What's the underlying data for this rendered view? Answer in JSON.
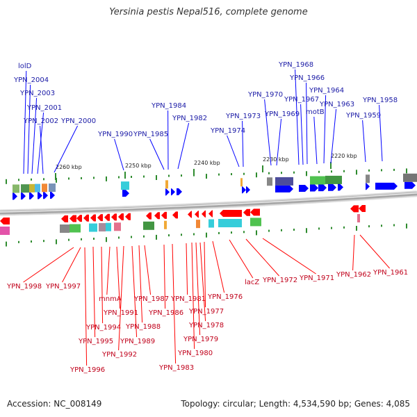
{
  "title": "Yersinia pestis Nepal516, complete genome",
  "accession": "Accession: NC_008149",
  "summary": "Topology: circular; Length: 4,534,590 bp; Genes: 4,085",
  "colors": {
    "forward": "#0000ff",
    "reverse": "#ff0000",
    "forward_label": "#1a1aa6",
    "reverse_label": "#c0001a",
    "tick": "#2e8b2e",
    "backbone": "#a7a7a7"
  },
  "scale": [
    "2260 kbp",
    "2250 kbp",
    "2240 kbp",
    "2230 kbp",
    "2220 kbp"
  ],
  "forward_genes": [
    "lolD",
    "YPN_2004",
    "YPN_2003",
    "YPN_2001",
    "YPN_2002",
    "YPN_2000",
    "YPN_1990",
    "YPN_1985",
    "YPN_1984",
    "YPN_1982",
    "YPN_1974",
    "YPN_1973",
    "YPN_1970",
    "YPN_1969",
    "YPN_1968",
    "YPN_1967",
    "YPN_1966",
    "motB",
    "YPN_1964",
    "YPN_1963",
    "YPN_1959",
    "YPN_1958"
  ],
  "reverse_genes": [
    "YPN_1998",
    "YPN_1997",
    "YPN_1996",
    "YPN_1995",
    "YPN_1994",
    "mnmA",
    "YPN_1991",
    "YPN_1992",
    "YPN_1989",
    "YPN_1988",
    "YPN_1987",
    "YPN_1986",
    "YPN_1983",
    "YPN_1981",
    "YPN_1980",
    "YPN_1979",
    "YPN_1978",
    "YPN_1977",
    "YPN_1976",
    "lacZ",
    "YPN_1972",
    "YPN_1971",
    "YPN_1962",
    "YPN_1961"
  ]
}
